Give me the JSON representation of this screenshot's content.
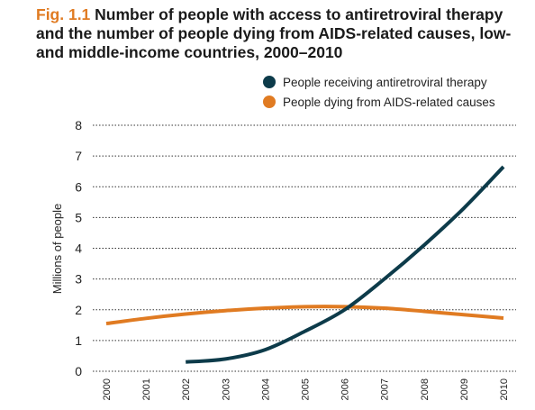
{
  "figure": {
    "label": "Fig. 1.1",
    "title": " Number of people with access to antiretroviral therapy and the number of people dying from AIDS-related causes, low- and middle-income countries, 2000–2010"
  },
  "colors": {
    "label_accent": "#e07b22",
    "grid": "#333333"
  },
  "chart_data": {
    "type": "line",
    "x": [
      "2000",
      "2001",
      "2002",
      "2003",
      "2004",
      "2005",
      "2006",
      "2007",
      "2008",
      "2009",
      "2010"
    ],
    "ylabel": "Millions of people",
    "xlabel": "",
    "ylim": [
      0,
      8
    ],
    "yticks": [
      "0",
      "1",
      "2",
      "3",
      "4",
      "5",
      "6",
      "7",
      "8"
    ],
    "grid": "horizontal dotted",
    "legend_placement": "top-right",
    "series": [
      {
        "name": "People receiving antiretroviral therapy",
        "color": "#0d3b4a",
        "values": [
          null,
          null,
          0.3,
          0.4,
          0.7,
          1.3,
          2.0,
          3.0,
          4.1,
          5.3,
          6.65
        ]
      },
      {
        "name": "People dying from AIDS-related causes",
        "color": "#e07b22",
        "values": [
          1.55,
          1.72,
          1.86,
          1.97,
          2.05,
          2.1,
          2.1,
          2.05,
          1.95,
          1.84,
          1.73
        ]
      }
    ]
  }
}
